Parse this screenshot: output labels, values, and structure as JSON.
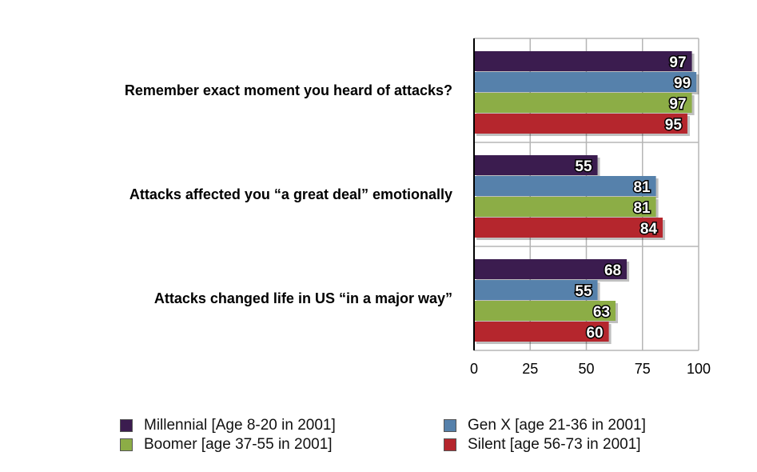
{
  "chart_data": {
    "type": "bar",
    "orientation": "horizontal",
    "categories": [
      "Remember exact moment you heard of attacks?",
      "Attacks affected you “a great deal” emotionally",
      "Attacks changed life in US “in a major way”"
    ],
    "series": [
      {
        "name": "Millennial [Age 8-20 in 2001]",
        "color": "#3b1c4f",
        "values": [
          97,
          55,
          68
        ]
      },
      {
        "name": "Gen X [age 21-36 in 2001]",
        "color": "#5681ab",
        "values": [
          99,
          81,
          55
        ]
      },
      {
        "name": "Boomer [age 37-55 in 2001]",
        "color": "#8cad46",
        "values": [
          97,
          81,
          63
        ]
      },
      {
        "name": "Silent [age 56-73 in 2001]",
        "color": "#b5262d",
        "values": [
          95,
          84,
          60
        ]
      }
    ],
    "xlim": [
      0,
      100
    ],
    "xticks": [
      0,
      25,
      50,
      75,
      100
    ],
    "grid": true,
    "legend_position": "bottom"
  }
}
